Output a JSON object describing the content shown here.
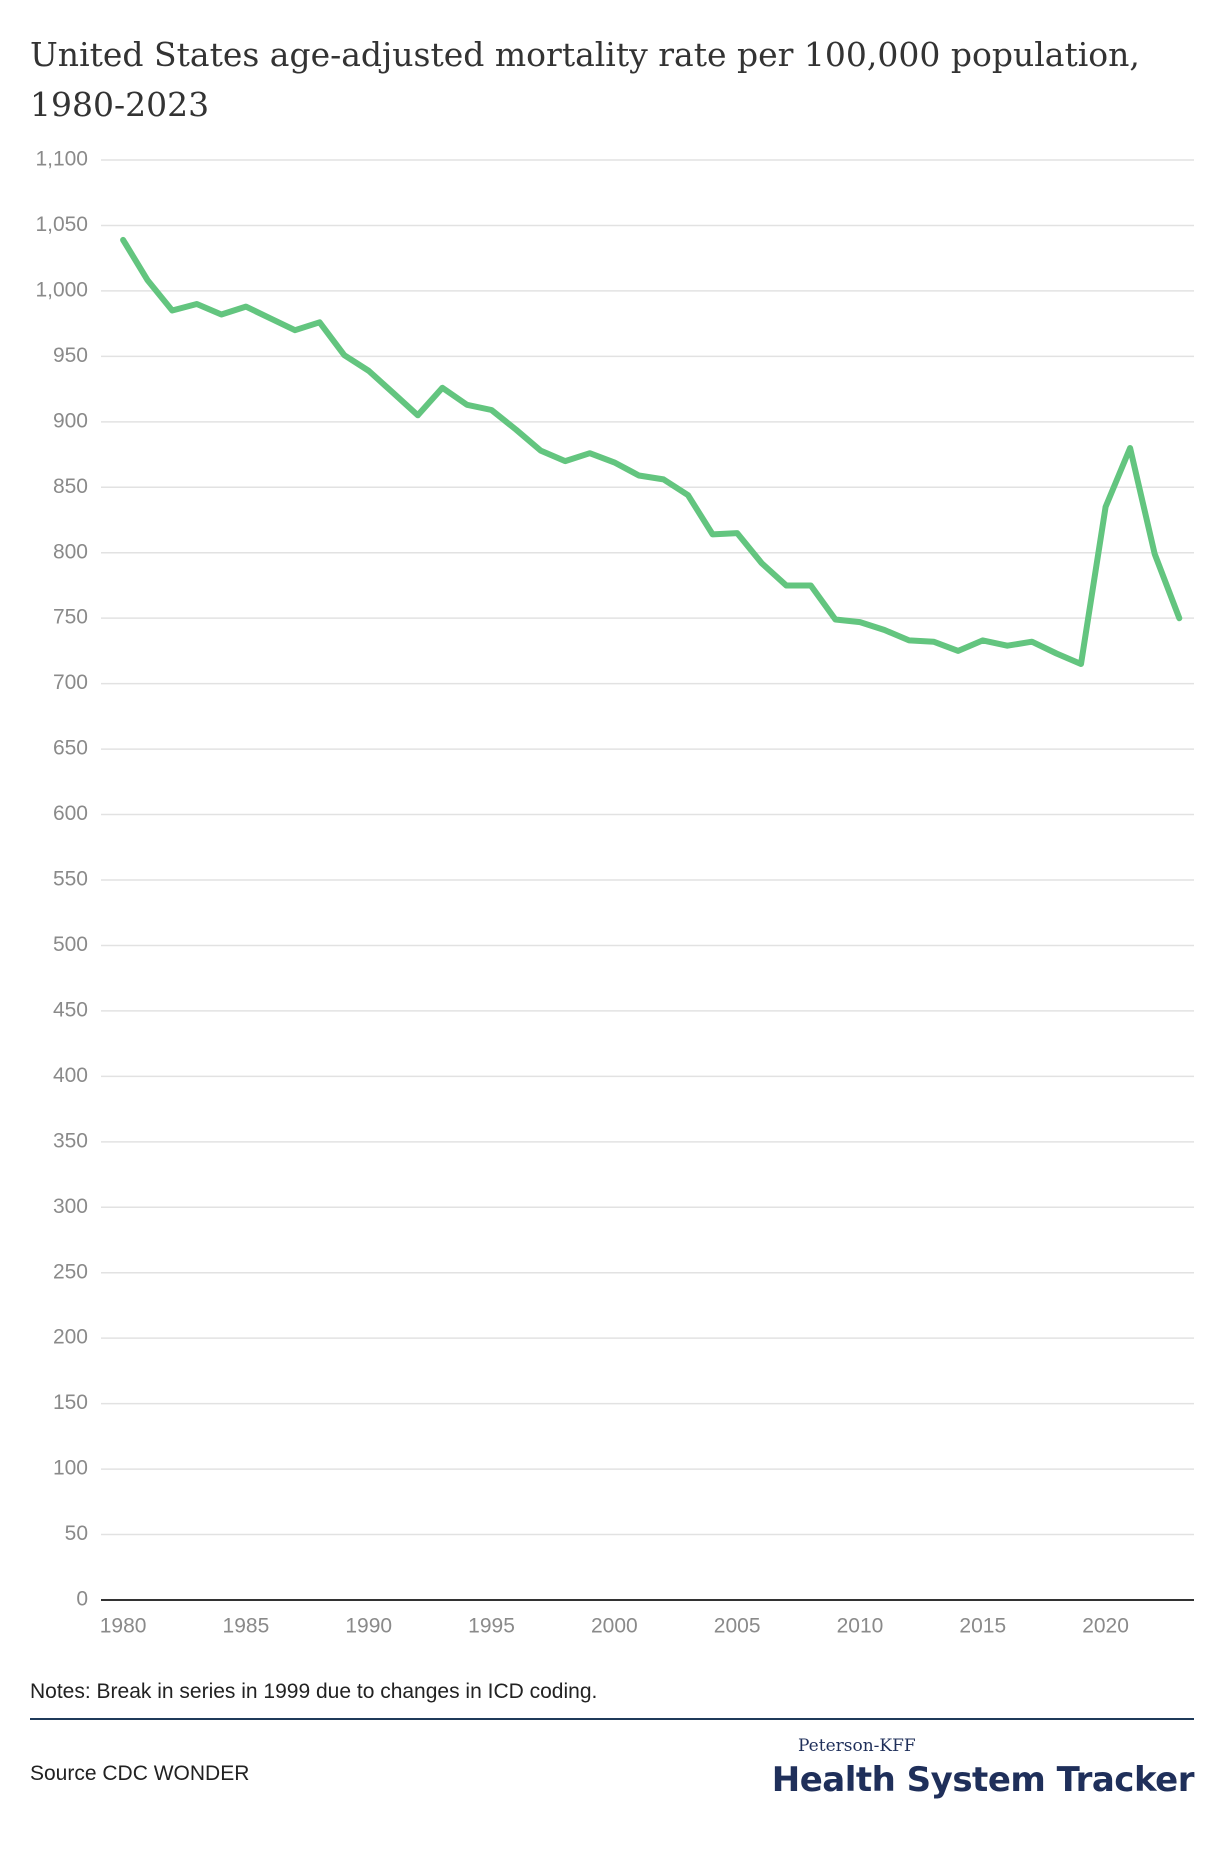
{
  "chart_data": {
    "type": "line",
    "title": "United States age-adjusted mortality rate per 100,000 population, 1980-2023",
    "x": [
      1980,
      1981,
      1982,
      1983,
      1984,
      1985,
      1986,
      1987,
      1988,
      1989,
      1990,
      1991,
      1992,
      1993,
      1994,
      1995,
      1996,
      1997,
      1998,
      1999,
      2000,
      2001,
      2002,
      2003,
      2004,
      2005,
      2006,
      2007,
      2008,
      2009,
      2010,
      2011,
      2012,
      2013,
      2014,
      2015,
      2016,
      2017,
      2018,
      2019,
      2020,
      2021,
      2022,
      2023
    ],
    "series": [
      {
        "name": "Age-adjusted mortality rate",
        "color": "#63c57f",
        "values": [
          1039,
          1008,
          985,
          990,
          982,
          988,
          979,
          970,
          976,
          951,
          939,
          922,
          905,
          926,
          913,
          909,
          894,
          878,
          870,
          876,
          869,
          859,
          856,
          844,
          814,
          815,
          792,
          775,
          775,
          749,
          747,
          741,
          733,
          732,
          725,
          733,
          729,
          732,
          723,
          715,
          835,
          880,
          799,
          750
        ]
      }
    ],
    "xlim": [
      1979.1,
      2023.6
    ],
    "xticks": [
      1980,
      1985,
      1990,
      1995,
      2000,
      2005,
      2010,
      2015,
      2020
    ],
    "ylim": [
      0,
      1100
    ],
    "yticks": [
      0,
      50,
      100,
      150,
      200,
      250,
      300,
      350,
      400,
      450,
      500,
      550,
      600,
      650,
      700,
      750,
      800,
      850,
      900,
      950,
      {
        "value": 1000,
        "label": "1,000"
      },
      {
        "value": 1050,
        "label": "1,050"
      },
      {
        "value": 1100,
        "label": "1,100"
      }
    ],
    "grid": true,
    "notes": "Notes: Break in series in 1999 due to changes in ICD coding.",
    "source": "Source CDC WONDER",
    "logo": {
      "top": "Peterson-KFF",
      "main": "Health System Tracker"
    }
  }
}
